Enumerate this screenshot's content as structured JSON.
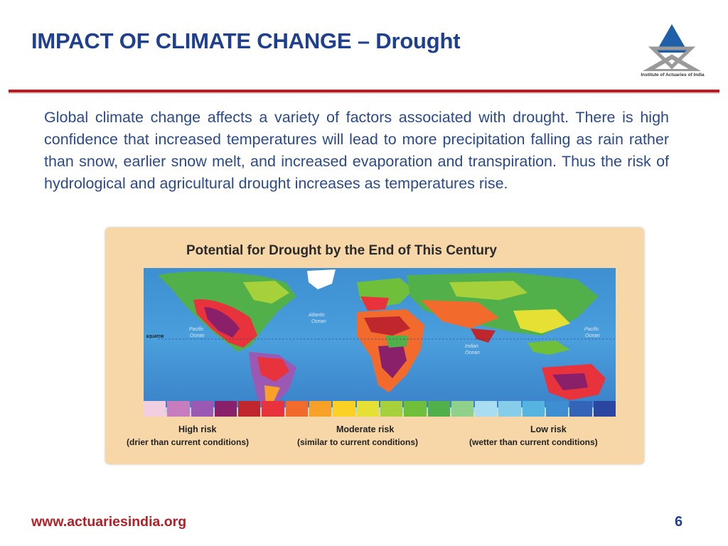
{
  "slide": {
    "title": "IMPACT OF CLIMATE CHANGE – Drought",
    "body": "Global climate change affects a variety of factors associated with drought. There is high confidence that increased temperatures will lead to more precipitation falling as rain rather than snow, earlier snow melt, and increased evaporation and transpiration. Thus the risk of hydrological and agricultural drought increases as temperatures rise."
  },
  "logo": {
    "caption": "Institute of Actuaries of India",
    "colors": {
      "triangle": "#1f5fa8",
      "frame": "#9a9a9a"
    }
  },
  "map_figure": {
    "title": "Potential for Drought by the End of This Century",
    "ocean_labels": {
      "atlantic": [
        "Atlantic",
        "Ocean"
      ],
      "pacific_east": [
        "Pacific",
        "Ocean"
      ],
      "pacific_west": [
        "Pacific",
        "Ocean"
      ],
      "indian": [
        "Indian",
        "Ocean"
      ]
    },
    "equator_label": "EQUATOR",
    "color_scale": [
      "#f2cfe0",
      "#c77dbd",
      "#9b59b3",
      "#8a1f6a",
      "#c0272d",
      "#e8323c",
      "#f26b2d",
      "#f7a128",
      "#fbd224",
      "#e6e034",
      "#a7d13a",
      "#6fbf3b",
      "#52b04a",
      "#8fd18a",
      "#a9def2",
      "#85cde8",
      "#55b4e0",
      "#3d8fd1",
      "#3464b8",
      "#2a46a0"
    ],
    "legend": {
      "high": {
        "label": "High risk",
        "sub": "(drier than current conditions)"
      },
      "moderate": {
        "label": "Moderate risk",
        "sub": "(similar to current conditions)"
      },
      "low": {
        "label": "Low risk",
        "sub": "(wetter than current conditions)"
      }
    }
  },
  "footer": {
    "url": "www.actuariesindia.org",
    "page": "6"
  }
}
